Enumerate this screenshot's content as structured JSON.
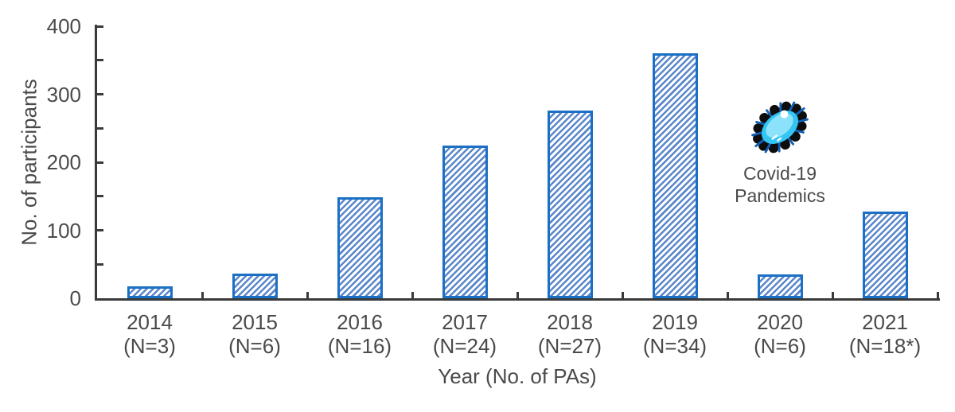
{
  "chart_data": {
    "type": "bar",
    "title": "",
    "categories": [
      "2014",
      "2015",
      "2016",
      "2017",
      "2018",
      "2019",
      "2020",
      "2021"
    ],
    "category_sublabels": [
      "(N=3)",
      "(N=6)",
      "(N=16)",
      "(N=24)",
      "(N=27)",
      "(N=34)",
      "(N=6)",
      "(N=18*)"
    ],
    "values": [
      18,
      36,
      148,
      225,
      276,
      360,
      35,
      128
    ],
    "xlabel": "Year (No. of PAs)",
    "ylabel": "No. of participants",
    "ylim": [
      0,
      400
    ],
    "y_major_ticks": [
      0,
      100,
      200,
      300,
      400
    ],
    "y_minor_tick_step": 50,
    "grid": false,
    "legend_position": "none",
    "bar_hatch": "diagonal-forward"
  },
  "annotation": {
    "caption_line1": "Covid-19",
    "caption_line2": "Pandemics",
    "icon": "virus-icon",
    "icon_colors": {
      "outline": "#0d0d0d",
      "spikes": "#1260b8",
      "body": "#33c5f3",
      "body_light": "#8ce2fa",
      "highlight": "#ffffff"
    }
  },
  "colors": {
    "axis": "#3a3a3a",
    "text": "#4a4a4a",
    "bar_border": "#1b6fc4",
    "bar_hatch": "#5a87cb",
    "bar_background": "#ffffff"
  }
}
